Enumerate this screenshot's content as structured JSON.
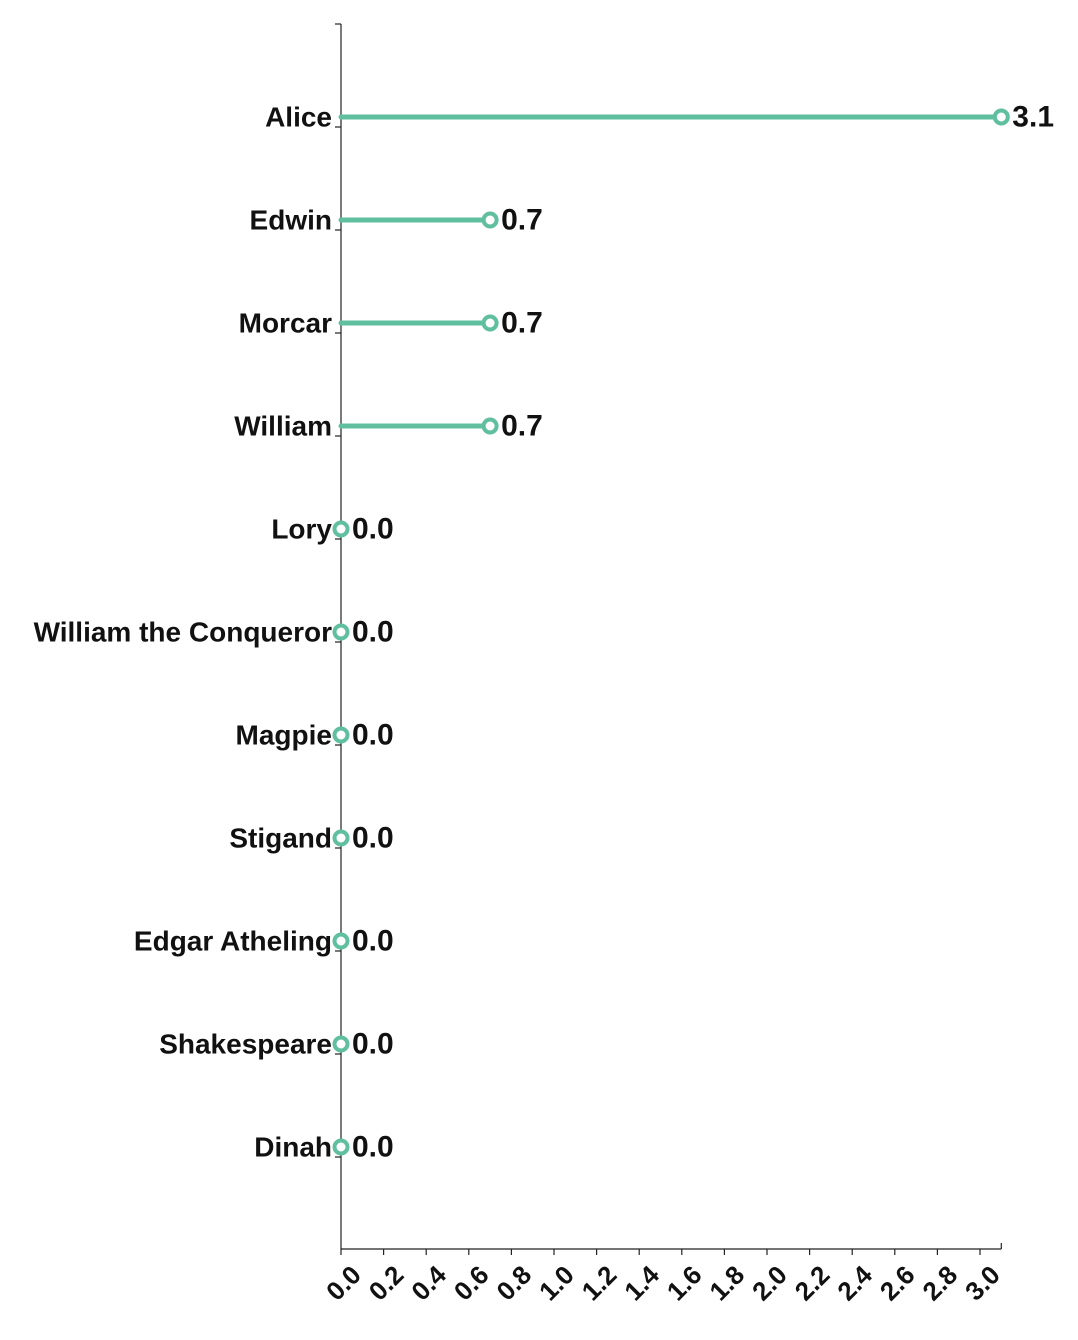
{
  "chart_data": {
    "type": "lollipop",
    "orientation": "horizontal",
    "categories": [
      "Alice",
      "Edwin",
      "Morcar",
      "William",
      "Lory",
      "William the Conqueror",
      "Magpie",
      "Stigand",
      "Edgar Atheling",
      "Shakespeare",
      "Dinah"
    ],
    "values": [
      3.1,
      0.7,
      0.7,
      0.7,
      0.0,
      0.0,
      0.0,
      0.0,
      0.0,
      0.0,
      0.0
    ],
    "value_labels": [
      "3.1",
      "0.7",
      "0.7",
      "0.7",
      "0.0",
      "0.0",
      "0.0",
      "0.0",
      "0.0",
      "0.0",
      "0.0"
    ],
    "xticks": [
      "0.0",
      "0.2",
      "0.4",
      "0.6",
      "0.8",
      "1.0",
      "1.2",
      "1.4",
      "1.6",
      "1.8",
      "2.0",
      "2.2",
      "2.4",
      "2.6",
      "2.8",
      "3.0"
    ],
    "xlim": [
      0,
      3.1
    ],
    "title": "",
    "xlabel": "",
    "ylabel": "",
    "grid": false,
    "legend": "none",
    "color": "#5fbf9f"
  }
}
